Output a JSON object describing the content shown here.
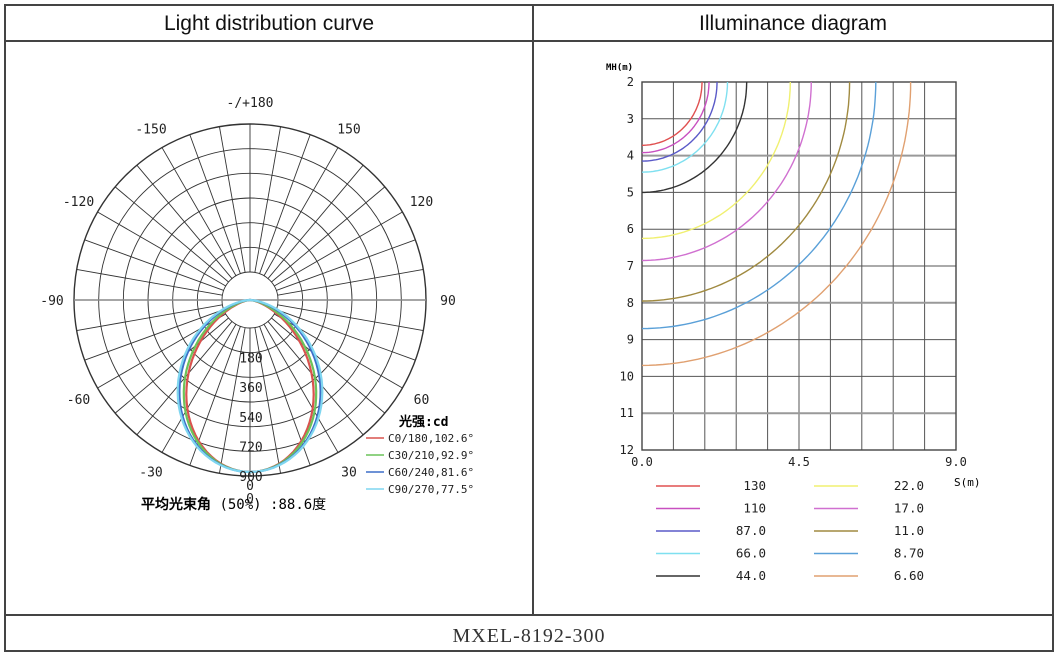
{
  "model": "MXEL-8192-300",
  "panels": {
    "left_title": "Light distribution curve",
    "right_title": "Illuminance diagram"
  },
  "chart_data": [
    {
      "type": "polar",
      "title": "Light distribution curve",
      "angle_labels": [
        "-/+180",
        "-150",
        "150",
        "-120",
        "120",
        "-90",
        "90",
        "-60",
        "60",
        "-30",
        "30",
        "0"
      ],
      "radial_labels": [
        "180",
        "360",
        "540",
        "720",
        "900"
      ],
      "radial_max": 900,
      "unit_label": "光强:cd",
      "beam_angle_note": "平均光束角",
      "beam_angle_pct": "(50%)",
      "beam_angle_value": ":88.6度",
      "series": [
        {
          "name": "C0/180,102.6°",
          "color": "#d9534f",
          "peak": 900,
          "width": 2.2
        },
        {
          "name": "C30/210,92.9°",
          "color": "#6cc35a",
          "peak": 900,
          "width": 2.0
        },
        {
          "name": "C60/240,81.6°",
          "color": "#3d6fc8",
          "peak": 900,
          "width": 1.7
        },
        {
          "name": "C90/270,77.5°",
          "color": "#7fd6f0",
          "peak": 900,
          "width": 1.6
        }
      ]
    },
    {
      "type": "line",
      "title": "Illuminance diagram",
      "ylabel": "MH(m)",
      "xlabel": "S(m)",
      "y_ticks": [
        "2",
        "3",
        "4",
        "5",
        "6",
        "7",
        "8",
        "9",
        "10",
        "11",
        "12"
      ],
      "x_ticks": [
        "0.0",
        "4.5",
        "9.0"
      ],
      "xlim": [
        0,
        9
      ],
      "ylim": [
        2,
        12
      ],
      "series": [
        {
          "name": "130",
          "color": "#e05050",
          "r": 1.72
        },
        {
          "name": "110",
          "color": "#c850c0",
          "r": 1.92
        },
        {
          "name": "87.0",
          "color": "#5a5ac8",
          "r": 2.15
        },
        {
          "name": "66.0",
          "color": "#7fe0f0",
          "r": 2.45
        },
        {
          "name": "44.0",
          "color": "#333333",
          "r": 3.0
        },
        {
          "name": "22.0",
          "color": "#f0f070",
          "r": 4.25
        },
        {
          "name": "17.0",
          "color": "#d070d0",
          "r": 4.85
        },
        {
          "name": "11.0",
          "color": "#a08a40",
          "r": 5.95
        },
        {
          "name": "8.70",
          "color": "#5aa0d8",
          "r": 6.7
        },
        {
          "name": "6.60",
          "color": "#e0a070",
          "r": 7.7
        }
      ]
    }
  ]
}
